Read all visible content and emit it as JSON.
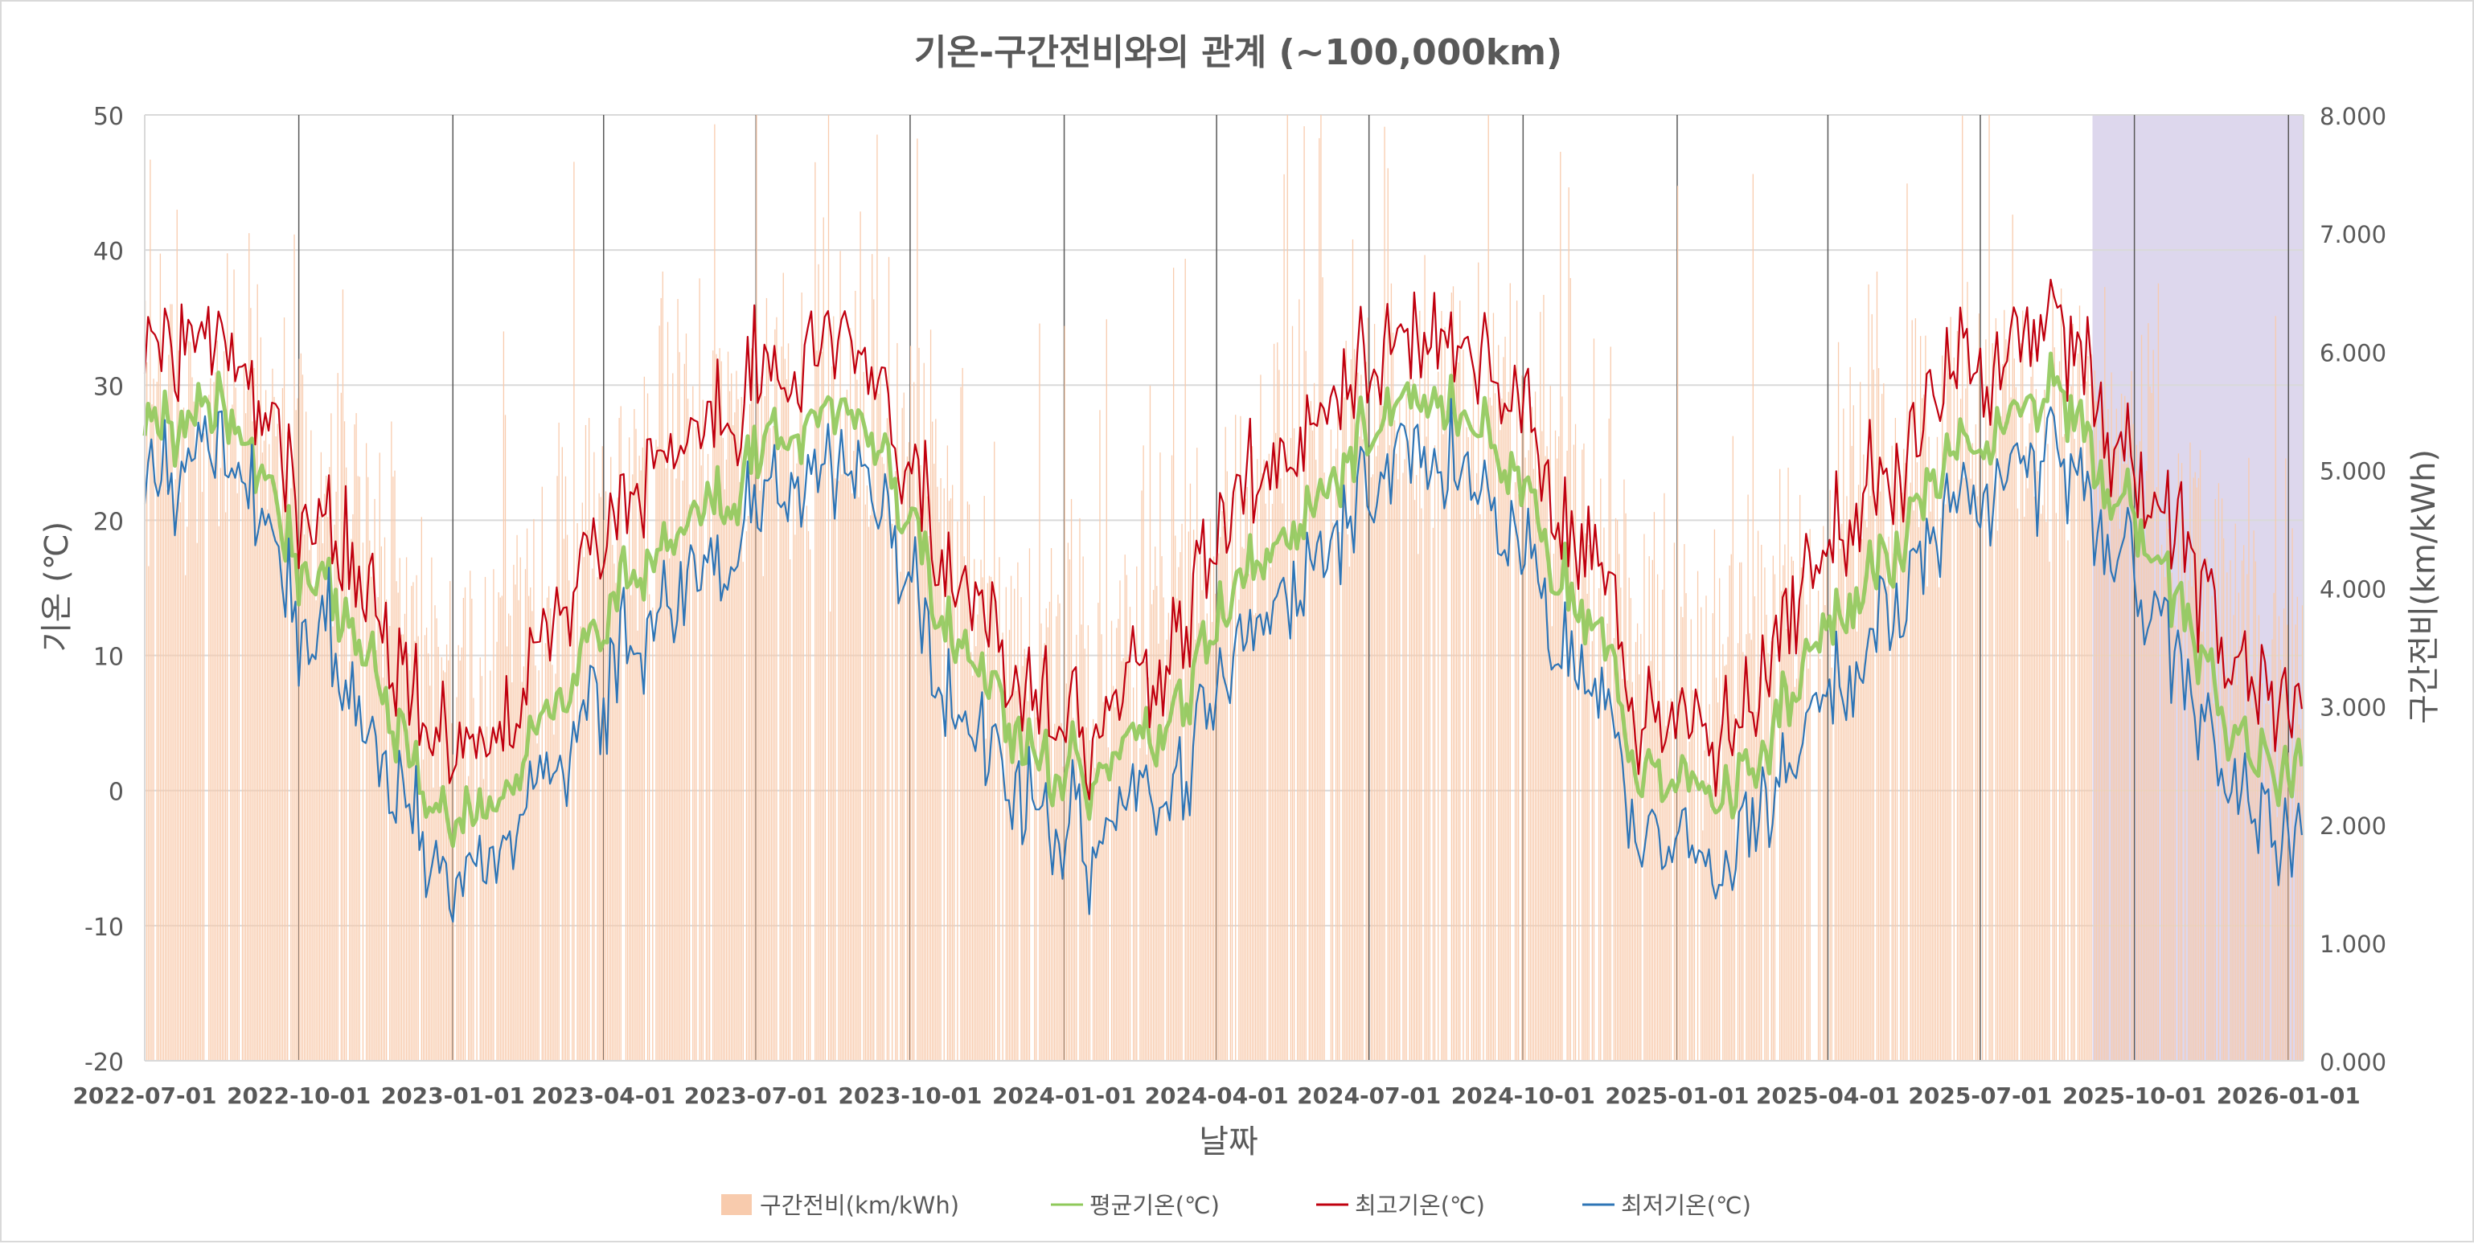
{
  "chart_data": {
    "type": "bar+line",
    "title": "기온-구간전비와의 관계 (~100,000km)",
    "xlabel": "날짜",
    "ylabel_left": "기온 (℃)",
    "ylabel_right": "구간전비(km/kWh)",
    "x_range": [
      "2022-07-01",
      "2026-01-10"
    ],
    "y_left": {
      "min": -20,
      "max": 50,
      "step": 10,
      "ticks": [
        "-20",
        "-10",
        "0",
        "10",
        "20",
        "30",
        "40",
        "50"
      ]
    },
    "y_right": {
      "min": 0,
      "max": 8,
      "step": 1,
      "ticks": [
        "0.000",
        "1.000",
        "2.000",
        "3.000",
        "4.000",
        "5.000",
        "6.000",
        "7.000",
        "8.000"
      ]
    },
    "x_ticks": [
      "2022-07-01",
      "2022-10-01",
      "2023-01-01",
      "2023-04-01",
      "2023-07-01",
      "2023-10-01",
      "2024-01-01",
      "2024-04-01",
      "2024-07-01",
      "2024-10-01",
      "2025-01-01",
      "2025-04-01",
      "2025-07-01",
      "2025-10-01",
      "2026-01-01"
    ],
    "highlight_range": [
      "2025-09-06",
      "2026-01-10"
    ],
    "grid": true,
    "legend_position": "bottom",
    "colors": {
      "efficiency": "#f8cbad",
      "avg": "#8fc95a",
      "max": "#c0000f",
      "min": "#2e75b6",
      "highlight": "#b4a7d6",
      "grid": "#d9d9d9",
      "vline": "#595959",
      "axis": "#595959"
    },
    "series": [
      {
        "key": "efficiency",
        "name": "구간전비(km/kWh)",
        "axis": "right",
        "kind": "bar",
        "monthly_typical": [
          [
            "2022-07",
            5.5
          ],
          [
            "2022-08",
            5.5
          ],
          [
            "2022-09",
            5.6
          ],
          [
            "2022-10",
            5.0
          ],
          [
            "2022-11",
            4.4
          ],
          [
            "2022-12",
            3.6
          ],
          [
            "2023-01",
            3.4
          ],
          [
            "2023-02",
            3.7
          ],
          [
            "2023-03",
            4.2
          ],
          [
            "2023-04",
            4.8
          ],
          [
            "2023-05",
            5.2
          ],
          [
            "2023-06",
            5.5
          ],
          [
            "2023-07",
            5.6
          ],
          [
            "2023-08",
            5.4
          ],
          [
            "2023-09",
            5.5
          ],
          [
            "2023-10",
            5.0
          ],
          [
            "2023-11",
            4.3
          ],
          [
            "2023-12",
            3.6
          ],
          [
            "2024-01",
            3.3
          ],
          [
            "2024-02",
            3.6
          ],
          [
            "2024-03",
            4.1
          ],
          [
            "2024-04",
            4.8
          ],
          [
            "2024-05",
            5.3
          ],
          [
            "2024-06",
            5.5
          ],
          [
            "2024-07",
            5.6
          ],
          [
            "2024-08",
            5.5
          ],
          [
            "2024-09",
            5.5
          ],
          [
            "2024-10",
            4.9
          ],
          [
            "2024-11",
            4.3
          ],
          [
            "2024-12",
            3.6
          ],
          [
            "2025-01",
            3.3
          ],
          [
            "2025-02",
            3.5
          ],
          [
            "2025-03",
            4.2
          ],
          [
            "2025-04",
            4.8
          ],
          [
            "2025-05",
            5.2
          ],
          [
            "2025-06",
            5.4
          ],
          [
            "2025-07",
            5.5
          ],
          [
            "2025-08",
            5.4
          ],
          [
            "2025-09",
            5.3
          ],
          [
            "2025-10",
            4.8
          ],
          [
            "2025-11",
            4.2
          ],
          [
            "2025-12",
            3.5
          ],
          [
            "2026-01",
            3.3
          ]
        ],
        "notable_peaks": [
          [
            "2023-10-05",
            7.8
          ],
          [
            "2024-07-10",
            7.9
          ],
          [
            "2024-09-10",
            8.0
          ],
          [
            "2025-01-01",
            7.4
          ],
          [
            "2025-02-15",
            7.5
          ],
          [
            "2025-07-05",
            6.7
          ],
          [
            "2022-09-01",
            7.0
          ],
          [
            "2023-03-15",
            6.8
          ]
        ]
      },
      {
        "key": "avg",
        "name": "평균기온(℃)",
        "axis": "left",
        "kind": "line",
        "monthly_typical": [
          [
            "2022-07",
            28
          ],
          [
            "2022-08",
            28
          ],
          [
            "2022-09",
            22
          ],
          [
            "2022-10",
            15
          ],
          [
            "2022-11",
            10
          ],
          [
            "2022-12",
            -2
          ],
          [
            "2023-01",
            -1
          ],
          [
            "2023-02",
            3
          ],
          [
            "2023-03",
            10
          ],
          [
            "2023-04",
            14
          ],
          [
            "2023-05",
            19
          ],
          [
            "2023-06",
            23
          ],
          [
            "2023-07",
            27
          ],
          [
            "2023-08",
            28
          ],
          [
            "2023-09",
            24
          ],
          [
            "2023-10",
            16
          ],
          [
            "2023-11",
            8
          ],
          [
            "2023-12",
            1
          ],
          [
            "2024-01",
            1
          ],
          [
            "2024-02",
            4
          ],
          [
            "2024-03",
            8
          ],
          [
            "2024-04",
            15
          ],
          [
            "2024-05",
            19
          ],
          [
            "2024-06",
            24
          ],
          [
            "2024-07",
            28
          ],
          [
            "2024-08",
            29
          ],
          [
            "2024-09",
            26
          ],
          [
            "2024-10",
            17
          ],
          [
            "2024-11",
            10
          ],
          [
            "2024-12",
            1
          ],
          [
            "2025-01",
            0
          ],
          [
            "2025-02",
            1
          ],
          [
            "2025-03",
            8
          ],
          [
            "2025-04",
            14
          ],
          [
            "2025-05",
            19
          ],
          [
            "2025-06",
            24
          ],
          [
            "2025-07",
            29
          ],
          [
            "2025-08",
            29
          ],
          [
            "2025-09",
            24
          ],
          [
            "2025-10",
            17
          ],
          [
            "2025-11",
            10
          ],
          [
            "2025-12",
            2
          ],
          [
            "2026-01",
            1
          ]
        ]
      },
      {
        "key": "max",
        "name": "최고기온(℃)",
        "axis": "left",
        "kind": "line",
        "monthly_typical": [
          [
            "2022-07",
            34
          ],
          [
            "2022-08",
            33
          ],
          [
            "2022-09",
            27
          ],
          [
            "2022-10",
            20
          ],
          [
            "2022-11",
            15
          ],
          [
            "2022-12",
            3
          ],
          [
            "2023-01",
            4
          ],
          [
            "2023-02",
            8
          ],
          [
            "2023-03",
            17
          ],
          [
            "2023-04",
            21
          ],
          [
            "2023-05",
            25
          ],
          [
            "2023-06",
            29
          ],
          [
            "2023-07",
            32
          ],
          [
            "2023-08",
            33
          ],
          [
            "2023-09",
            28
          ],
          [
            "2023-10",
            21
          ],
          [
            "2023-11",
            13
          ],
          [
            "2023-12",
            5
          ],
          [
            "2024-01",
            4
          ],
          [
            "2024-02",
            8
          ],
          [
            "2024-03",
            14
          ],
          [
            "2024-04",
            22
          ],
          [
            "2024-05",
            25
          ],
          [
            "2024-06",
            30
          ],
          [
            "2024-07",
            33
          ],
          [
            "2024-08",
            34
          ],
          [
            "2024-09",
            31
          ],
          [
            "2024-10",
            22
          ],
          [
            "2024-11",
            15
          ],
          [
            "2024-12",
            5
          ],
          [
            "2025-01",
            4
          ],
          [
            "2025-02",
            6
          ],
          [
            "2025-03",
            14
          ],
          [
            "2025-04",
            20
          ],
          [
            "2025-05",
            25
          ],
          [
            "2025-06",
            30
          ],
          [
            "2025-07",
            34
          ],
          [
            "2025-08",
            34
          ],
          [
            "2025-09",
            28
          ],
          [
            "2025-10",
            21
          ],
          [
            "2025-11",
            15
          ],
          [
            "2025-12",
            7
          ],
          [
            "2026-01",
            6
          ]
        ]
      },
      {
        "key": "min",
        "name": "최저기온(℃)",
        "axis": "left",
        "kind": "line",
        "monthly_typical": [
          [
            "2022-07",
            24
          ],
          [
            "2022-08",
            25
          ],
          [
            "2022-09",
            18
          ],
          [
            "2022-10",
            11
          ],
          [
            "2022-11",
            5
          ],
          [
            "2022-12",
            -6
          ],
          [
            "2023-01",
            -5
          ],
          [
            "2023-02",
            -1
          ],
          [
            "2023-03",
            5
          ],
          [
            "2023-04",
            9
          ],
          [
            "2023-05",
            14
          ],
          [
            "2023-06",
            19
          ],
          [
            "2023-07",
            23
          ],
          [
            "2023-08",
            24
          ],
          [
            "2023-09",
            20
          ],
          [
            "2023-10",
            11
          ],
          [
            "2023-11",
            3
          ],
          [
            "2023-12",
            -3
          ],
          [
            "2024-01",
            -4
          ],
          [
            "2024-02",
            0
          ],
          [
            "2024-03",
            3
          ],
          [
            "2024-04",
            10
          ],
          [
            "2024-05",
            14
          ],
          [
            "2024-06",
            20
          ],
          [
            "2024-07",
            24
          ],
          [
            "2024-08",
            25
          ],
          [
            "2024-09",
            22
          ],
          [
            "2024-10",
            12
          ],
          [
            "2024-11",
            5
          ],
          [
            "2024-12",
            -3
          ],
          [
            "2025-01",
            -5
          ],
          [
            "2025-02",
            -3
          ],
          [
            "2025-03",
            3
          ],
          [
            "2025-04",
            9
          ],
          [
            "2025-05",
            14
          ],
          [
            "2025-06",
            20
          ],
          [
            "2025-07",
            25
          ],
          [
            "2025-08",
            25
          ],
          [
            "2025-09",
            20
          ],
          [
            "2025-10",
            13
          ],
          [
            "2025-11",
            6
          ],
          [
            "2025-12",
            -2
          ],
          [
            "2026-01",
            -3
          ]
        ]
      }
    ]
  }
}
